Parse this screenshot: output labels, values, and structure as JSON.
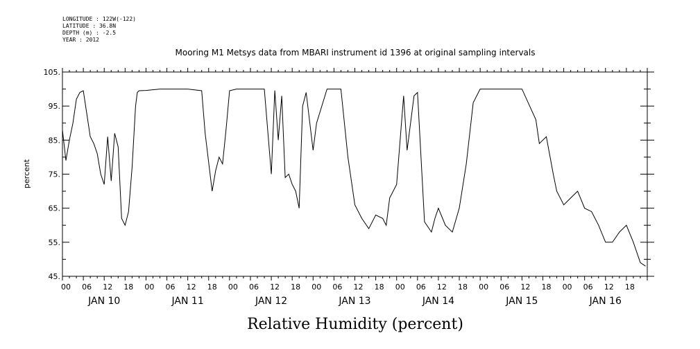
{
  "header": {
    "meta_lines": [
      "LONGITUDE : 122W(-122)",
      "LATITUDE : 36.8N",
      "DEPTH (m) : -2.5",
      "YEAR : 2012"
    ],
    "title": "Mooring M1 Metsys data from MBARI instrument id 1396 at original sampling intervals"
  },
  "chart_data": {
    "type": "line",
    "title": "Mooring M1 Metsys data from MBARI instrument id 1396 at original sampling intervals",
    "xlabel": "Relative Humidity (percent)",
    "ylabel": "percent",
    "ylim": [
      45,
      105
    ],
    "yticks": [
      45,
      55,
      65,
      75,
      85,
      95,
      105
    ],
    "ytick_labels": [
      "45.",
      "55.",
      "65.",
      "75.",
      "85.",
      "95.",
      "105."
    ],
    "xlim_hours": [
      "2012-01-10 00:00",
      "2012-01-17 00:00"
    ],
    "hour_ticks": [
      "00",
      "06",
      "12",
      "18",
      "00",
      "06",
      "12",
      "18",
      "00",
      "06",
      "12",
      "18",
      "00",
      "06",
      "12",
      "18",
      "00",
      "06",
      "12",
      "18",
      "00",
      "06",
      "12",
      "18",
      "00",
      "06",
      "12",
      "18"
    ],
    "day_labels": [
      "JAN 10",
      "JAN 11",
      "JAN 12",
      "JAN 13",
      "JAN 14",
      "JAN 15",
      "JAN 16"
    ],
    "grid": false,
    "series": [
      {
        "x": [
          "2012-01-10 00:00",
          "2012-01-10 01:00",
          "2012-01-10 02:00",
          "2012-01-10 03:00",
          "2012-01-10 04:00",
          "2012-01-10 05:00",
          "2012-01-10 06:00",
          "2012-01-10 08:00",
          "2012-01-10 09:00",
          "2012-01-10 10:00",
          "2012-01-10 11:00",
          "2012-01-10 12:00",
          "2012-01-10 13:00",
          "2012-01-10 14:00",
          "2012-01-10 15:00",
          "2012-01-10 16:00",
          "2012-01-10 17:00",
          "2012-01-10 18:00",
          "2012-01-10 19:00",
          "2012-01-10 20:00",
          "2012-01-10 21:00",
          "2012-01-10 21:30",
          "2012-01-10 22:00",
          "2012-01-11 00:00",
          "2012-01-11 04:00",
          "2012-01-11 08:00",
          "2012-01-11 12:00",
          "2012-01-11 16:00",
          "2012-01-11 17:00",
          "2012-01-11 19:00",
          "2012-01-11 20:00",
          "2012-01-11 21:00",
          "2012-01-11 22:00",
          "2012-01-11 23:00",
          "2012-01-12 00:00",
          "2012-01-12 02:00",
          "2012-01-12 04:00",
          "2012-01-12 08:00",
          "2012-01-12 10:00",
          "2012-01-12 12:00",
          "2012-01-12 13:00",
          "2012-01-12 14:00",
          "2012-01-12 15:00",
          "2012-01-12 16:00",
          "2012-01-12 17:00",
          "2012-01-12 18:00",
          "2012-01-12 19:00",
          "2012-01-12 20:00",
          "2012-01-12 21:00",
          "2012-01-12 22:00",
          "2012-01-13 00:00",
          "2012-01-13 01:00",
          "2012-01-13 04:00",
          "2012-01-13 06:00",
          "2012-01-13 08:00",
          "2012-01-13 10:00",
          "2012-01-13 12:00",
          "2012-01-13 14:00",
          "2012-01-13 16:00",
          "2012-01-13 18:00",
          "2012-01-13 20:00",
          "2012-01-13 21:00",
          "2012-01-13 22:00",
          "2012-01-14 00:00",
          "2012-01-14 02:00",
          "2012-01-14 03:00",
          "2012-01-14 05:00",
          "2012-01-14 06:00",
          "2012-01-14 08:00",
          "2012-01-14 10:00",
          "2012-01-14 11:00",
          "2012-01-14 12:00",
          "2012-01-14 14:00",
          "2012-01-14 16:00",
          "2012-01-14 18:00",
          "2012-01-14 20:00",
          "2012-01-14 22:00",
          "2012-01-15 00:00",
          "2012-01-15 02:00",
          "2012-01-15 04:00",
          "2012-01-15 08:00",
          "2012-01-15 12:00",
          "2012-01-15 16:00",
          "2012-01-15 17:00",
          "2012-01-15 19:00",
          "2012-01-15 21:00",
          "2012-01-15 22:00",
          "2012-01-16 00:00",
          "2012-01-16 02:00",
          "2012-01-16 04:00",
          "2012-01-16 06:00",
          "2012-01-16 08:00",
          "2012-01-16 10:00",
          "2012-01-16 12:00",
          "2012-01-16 14:00",
          "2012-01-16 16:00",
          "2012-01-16 18:00",
          "2012-01-16 20:00",
          "2012-01-16 22:00",
          "2012-01-16 23:30"
        ],
        "y": [
          88,
          79,
          85,
          90,
          97,
          99,
          99.5,
          86,
          84,
          81,
          75,
          72,
          86,
          73,
          87,
          83,
          62,
          60,
          64,
          77,
          95,
          99,
          99.5,
          99.6,
          100,
          100,
          100,
          99.5,
          87,
          70,
          76,
          80,
          78,
          88,
          99.5,
          100,
          100,
          100,
          100,
          75,
          99.6,
          85,
          98,
          74,
          75,
          72,
          70,
          65,
          95,
          99,
          82,
          90,
          100,
          100,
          100,
          80,
          66,
          62,
          59,
          63,
          62,
          60,
          68,
          72,
          98,
          82,
          98,
          99,
          61,
          58,
          62,
          65,
          60,
          58,
          65,
          78,
          96,
          100,
          100,
          100,
          100,
          100,
          91,
          84,
          86,
          75,
          70,
          66,
          68,
          70,
          65,
          64,
          60,
          55,
          55,
          58,
          60,
          55,
          49,
          48
        ]
      }
    ]
  }
}
